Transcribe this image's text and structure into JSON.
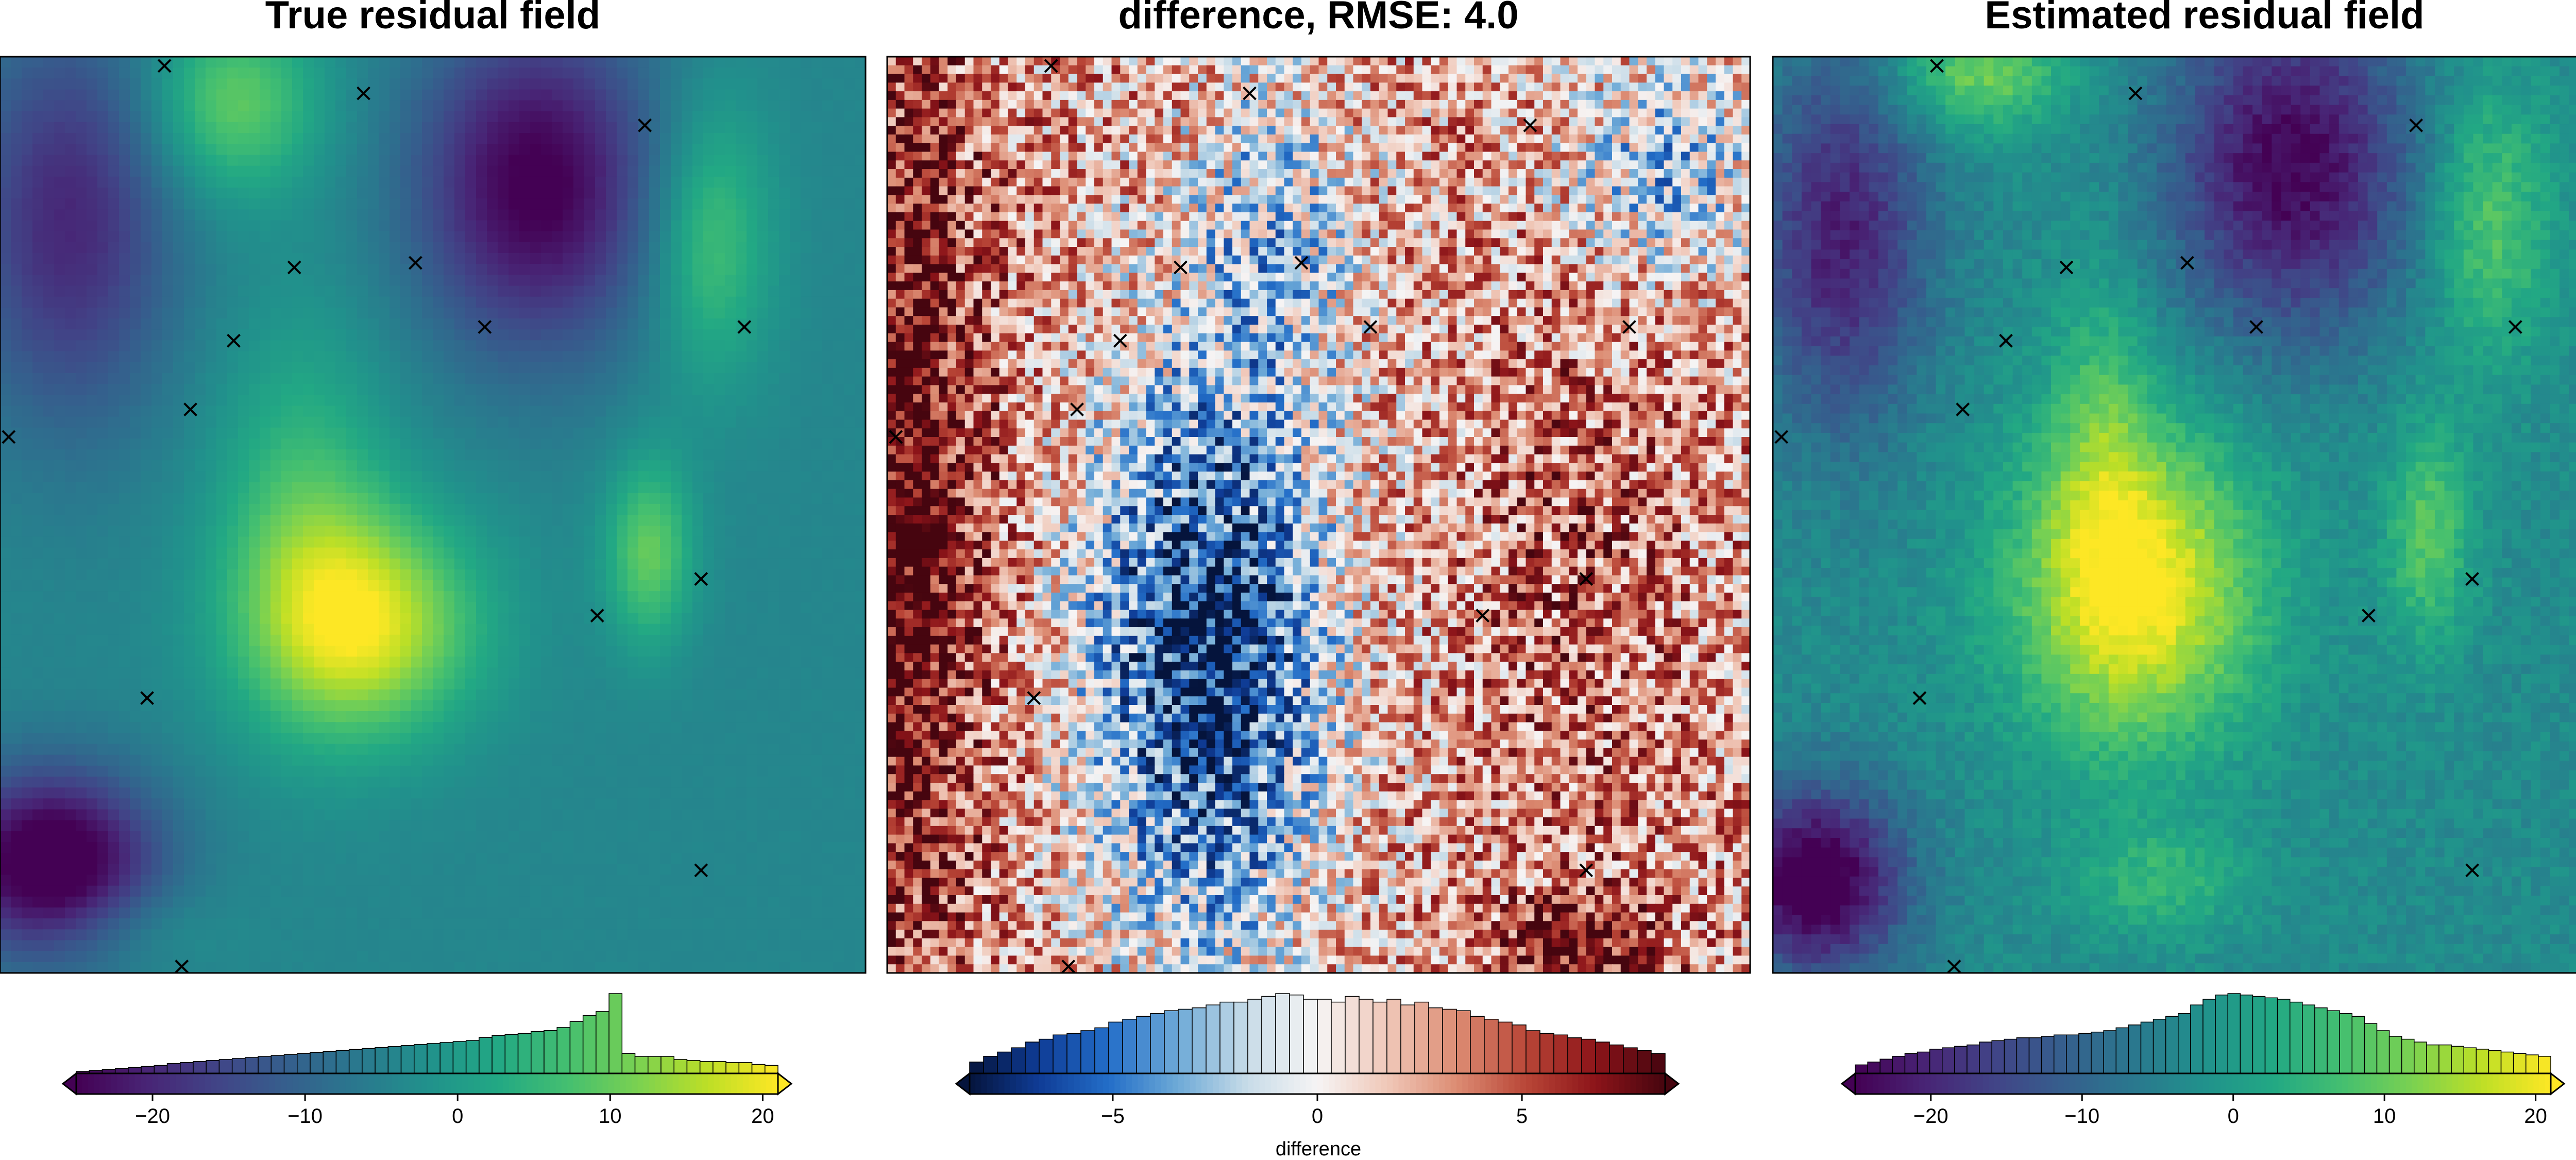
{
  "figure": {
    "panels": [
      {
        "title": "True residual field",
        "kind": "field",
        "colormap": "viridis",
        "colorbar": {
          "ticks": [
            -20,
            -10,
            0,
            10,
            20
          ],
          "tick_labels": [
            "−20",
            "−10",
            "0",
            "10",
            "20"
          ],
          "vmin": -25,
          "vmax": 21,
          "label": ""
        }
      },
      {
        "title": "difference, RMSE: 4.0",
        "kind": "difference",
        "colormap": "diverging-blue-white-red",
        "colorbar": {
          "ticks": [
            -5,
            0,
            5
          ],
          "tick_labels": [
            "−5",
            "0",
            "5"
          ],
          "vmin": -8.5,
          "vmax": 8.5,
          "label": "difference"
        }
      },
      {
        "title": "Estimated residual field",
        "kind": "estimate",
        "colormap": "viridis",
        "colorbar": {
          "ticks": [
            -20,
            -10,
            0,
            10,
            20
          ],
          "tick_labels": [
            "−20",
            "−10",
            "0",
            "10",
            "20"
          ],
          "vmin": -25,
          "vmax": 21,
          "label": ""
        }
      }
    ],
    "marker_symbol": "×"
  },
  "chart_data": [
    {
      "type": "heatmap",
      "title": "True residual field",
      "colormap": "viridis",
      "value_range": [
        -25,
        21
      ],
      "points_marker": "x",
      "points": [
        {
          "x": 0.19,
          "y": 0.99
        },
        {
          "x": 0.42,
          "y": 0.96
        },
        {
          "x": 0.745,
          "y": 0.925
        },
        {
          "x": 0.34,
          "y": 0.77
        },
        {
          "x": 0.48,
          "y": 0.775
        },
        {
          "x": 0.27,
          "y": 0.69
        },
        {
          "x": 0.56,
          "y": 0.705
        },
        {
          "x": 0.86,
          "y": 0.705
        },
        {
          "x": 0.22,
          "y": 0.615
        },
        {
          "x": 0.01,
          "y": 0.585
        },
        {
          "x": 0.81,
          "y": 0.43
        },
        {
          "x": 0.69,
          "y": 0.39
        },
        {
          "x": 0.17,
          "y": 0.3
        },
        {
          "x": 0.81,
          "y": 0.112
        },
        {
          "x": 0.21,
          "y": 0.007
        }
      ],
      "histogram": {
        "bin_edges": [
          -25,
          21
        ],
        "counts": [
          2,
          3,
          4,
          5,
          6,
          7,
          8,
          10,
          11,
          12,
          13,
          14,
          15,
          16,
          17,
          18,
          19,
          20,
          21,
          22,
          23,
          24,
          25,
          26,
          27,
          28,
          29,
          30,
          31,
          32,
          33,
          36,
          38,
          39,
          40,
          42,
          43,
          46,
          52,
          58,
          62,
          80,
          20,
          17,
          17,
          17,
          14,
          13,
          12,
          12,
          11,
          11,
          9,
          8
        ]
      }
    },
    {
      "type": "heatmap",
      "title": "difference, RMSE: 4.0",
      "colormap": "diverging-blue-white-red",
      "value_range": [
        -8.5,
        8.5
      ],
      "rmse": 4.0,
      "points_marker": "x",
      "points": [
        {
          "x": 0.19,
          "y": 0.99
        },
        {
          "x": 0.42,
          "y": 0.96
        },
        {
          "x": 0.745,
          "y": 0.925
        },
        {
          "x": 0.34,
          "y": 0.77
        },
        {
          "x": 0.48,
          "y": 0.775
        },
        {
          "x": 0.27,
          "y": 0.69
        },
        {
          "x": 0.56,
          "y": 0.705
        },
        {
          "x": 0.86,
          "y": 0.705
        },
        {
          "x": 0.22,
          "y": 0.615
        },
        {
          "x": 0.01,
          "y": 0.585
        },
        {
          "x": 0.81,
          "y": 0.43
        },
        {
          "x": 0.69,
          "y": 0.39
        },
        {
          "x": 0.17,
          "y": 0.3
        },
        {
          "x": 0.81,
          "y": 0.112
        },
        {
          "x": 0.21,
          "y": 0.007
        }
      ],
      "histogram": {
        "bin_edges": [
          -8.5,
          8.5
        ],
        "counts": [
          8,
          12,
          15,
          18,
          22,
          24,
          27,
          28,
          30,
          32,
          36,
          38,
          40,
          42,
          44,
          45,
          46,
          48,
          50,
          50,
          52,
          54,
          56,
          55,
          52,
          52,
          50,
          54,
          52,
          50,
          52,
          48,
          50,
          46,
          45,
          44,
          40,
          38,
          36,
          34,
          30,
          28,
          27,
          25,
          24,
          22,
          20,
          18,
          16,
          14
        ]
      }
    },
    {
      "type": "heatmap",
      "title": "Estimated residual field",
      "colormap": "viridis",
      "value_range": [
        -25,
        21
      ],
      "points_marker": "x",
      "points": [
        {
          "x": 0.19,
          "y": 0.99
        },
        {
          "x": 0.42,
          "y": 0.96
        },
        {
          "x": 0.745,
          "y": 0.925
        },
        {
          "x": 0.34,
          "y": 0.77
        },
        {
          "x": 0.48,
          "y": 0.775
        },
        {
          "x": 0.27,
          "y": 0.69
        },
        {
          "x": 0.56,
          "y": 0.705
        },
        {
          "x": 0.86,
          "y": 0.705
        },
        {
          "x": 0.22,
          "y": 0.615
        },
        {
          "x": 0.01,
          "y": 0.585
        },
        {
          "x": 0.81,
          "y": 0.43
        },
        {
          "x": 0.69,
          "y": 0.39
        },
        {
          "x": 0.17,
          "y": 0.3
        },
        {
          "x": 0.81,
          "y": 0.112
        },
        {
          "x": 0.21,
          "y": 0.007
        }
      ],
      "histogram": {
        "bin_edges": [
          -25,
          21
        ],
        "counts": [
          6,
          8,
          10,
          12,
          14,
          15,
          17,
          18,
          19,
          20,
          22,
          23,
          24,
          25,
          25,
          26,
          27,
          27,
          28,
          29,
          30,
          32,
          34,
          36,
          38,
          40,
          42,
          48,
          52,
          55,
          56,
          55,
          54,
          53,
          52,
          50,
          48,
          46,
          44,
          42,
          40,
          35,
          30,
          26,
          24,
          22,
          20,
          20,
          19,
          18,
          17,
          16,
          15,
          14,
          13,
          12
        ]
      }
    }
  ]
}
